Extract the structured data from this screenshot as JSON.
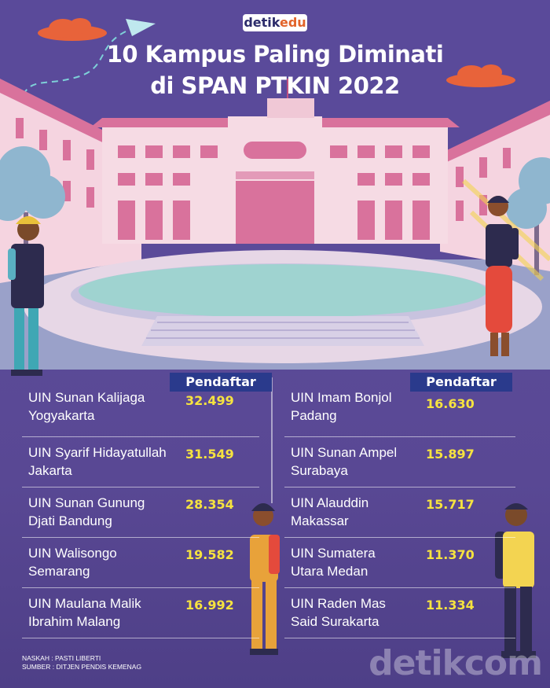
{
  "brand": {
    "detik": "detik",
    "edu": "edu"
  },
  "title": {
    "line1": "10 Kampus Paling Diminati",
    "line2": "di SPAN PTKIN 2022"
  },
  "table": {
    "header": "Pendaftar",
    "left": [
      {
        "name": "UIN Sunan Kalijaga\nYogyakarta",
        "value": "32.499"
      },
      {
        "name": "UIN Syarif Hidayatullah\nJakarta",
        "value": "31.549"
      },
      {
        "name": "UIN Sunan Gunung\nDjati Bandung",
        "value": "28.354"
      },
      {
        "name": "UIN Walisongo\nSemarang",
        "value": "19.582"
      },
      {
        "name": "UIN Maulana Malik\nIbrahim Malang",
        "value": "16.992"
      }
    ],
    "right": [
      {
        "name": "UIN Imam Bonjol\nPadang",
        "value": "16.630"
      },
      {
        "name": "UIN Sunan Ampel\nSurabaya",
        "value": "15.897"
      },
      {
        "name": "UIN Alauddin\nMakassar",
        "value": "15.717"
      },
      {
        "name": "UIN Sumatera\nUtara Medan",
        "value": "11.370"
      },
      {
        "name": "UIN Raden Mas\nSaid Surakarta",
        "value": "11.334"
      }
    ]
  },
  "credits": {
    "author": "NASKAH : PASTI LIBERTI",
    "source": "SUMBER : DITJEN PENDIS KEMENAG"
  },
  "watermark": "detikcom",
  "colors": {
    "background": "#5a4a9a",
    "header": "#2a3a8c",
    "value": "#f6e33f",
    "accent": "#e8633a"
  }
}
